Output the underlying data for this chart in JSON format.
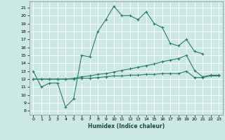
{
  "xlabel": "Humidex (Indice chaleur)",
  "bg_color": "#cce8e4",
  "grid_color": "#ffffff",
  "line_color": "#2d7a6e",
  "xlim": [
    -0.5,
    23.5
  ],
  "ylim": [
    7.5,
    21.8
  ],
  "yticks": [
    8,
    9,
    10,
    11,
    12,
    13,
    14,
    15,
    16,
    17,
    18,
    19,
    20,
    21
  ],
  "xticks": [
    0,
    1,
    2,
    3,
    4,
    5,
    6,
    7,
    8,
    9,
    10,
    11,
    12,
    13,
    14,
    15,
    16,
    17,
    18,
    19,
    20,
    21,
    22,
    23
  ],
  "line1_x": [
    0,
    1,
    2,
    3,
    4,
    5,
    6,
    7,
    8,
    9,
    10,
    11,
    12,
    13,
    14,
    15,
    16,
    17,
    18,
    19,
    20,
    21
  ],
  "line1_y": [
    13.0,
    11.0,
    11.5,
    11.5,
    8.5,
    9.5,
    15.0,
    14.8,
    18.0,
    19.5,
    21.2,
    20.0,
    20.0,
    19.5,
    20.5,
    19.0,
    18.5,
    16.5,
    16.2,
    17.0,
    15.5,
    15.2
  ],
  "line2_x": [
    0,
    1,
    2,
    3,
    4,
    5,
    6,
    7,
    8,
    9,
    10,
    11,
    12,
    13,
    14,
    15,
    16,
    17,
    18,
    19,
    20,
    21,
    22,
    23
  ],
  "line2_y": [
    12.0,
    12.0,
    12.0,
    12.0,
    12.0,
    12.1,
    12.3,
    12.4,
    12.6,
    12.7,
    12.9,
    13.1,
    13.3,
    13.5,
    13.7,
    13.9,
    14.2,
    14.4,
    14.6,
    15.0,
    13.1,
    12.3,
    12.5,
    12.5
  ],
  "line3_x": [
    0,
    1,
    2,
    3,
    4,
    5,
    6,
    7,
    8,
    9,
    10,
    11,
    12,
    13,
    14,
    15,
    16,
    17,
    18,
    19,
    20,
    21,
    22,
    23
  ],
  "line3_y": [
    12.0,
    12.0,
    12.0,
    12.0,
    12.0,
    12.0,
    12.1,
    12.1,
    12.2,
    12.3,
    12.4,
    12.4,
    12.5,
    12.5,
    12.6,
    12.6,
    12.7,
    12.7,
    12.7,
    13.0,
    12.2,
    12.2,
    12.4,
    12.4
  ]
}
